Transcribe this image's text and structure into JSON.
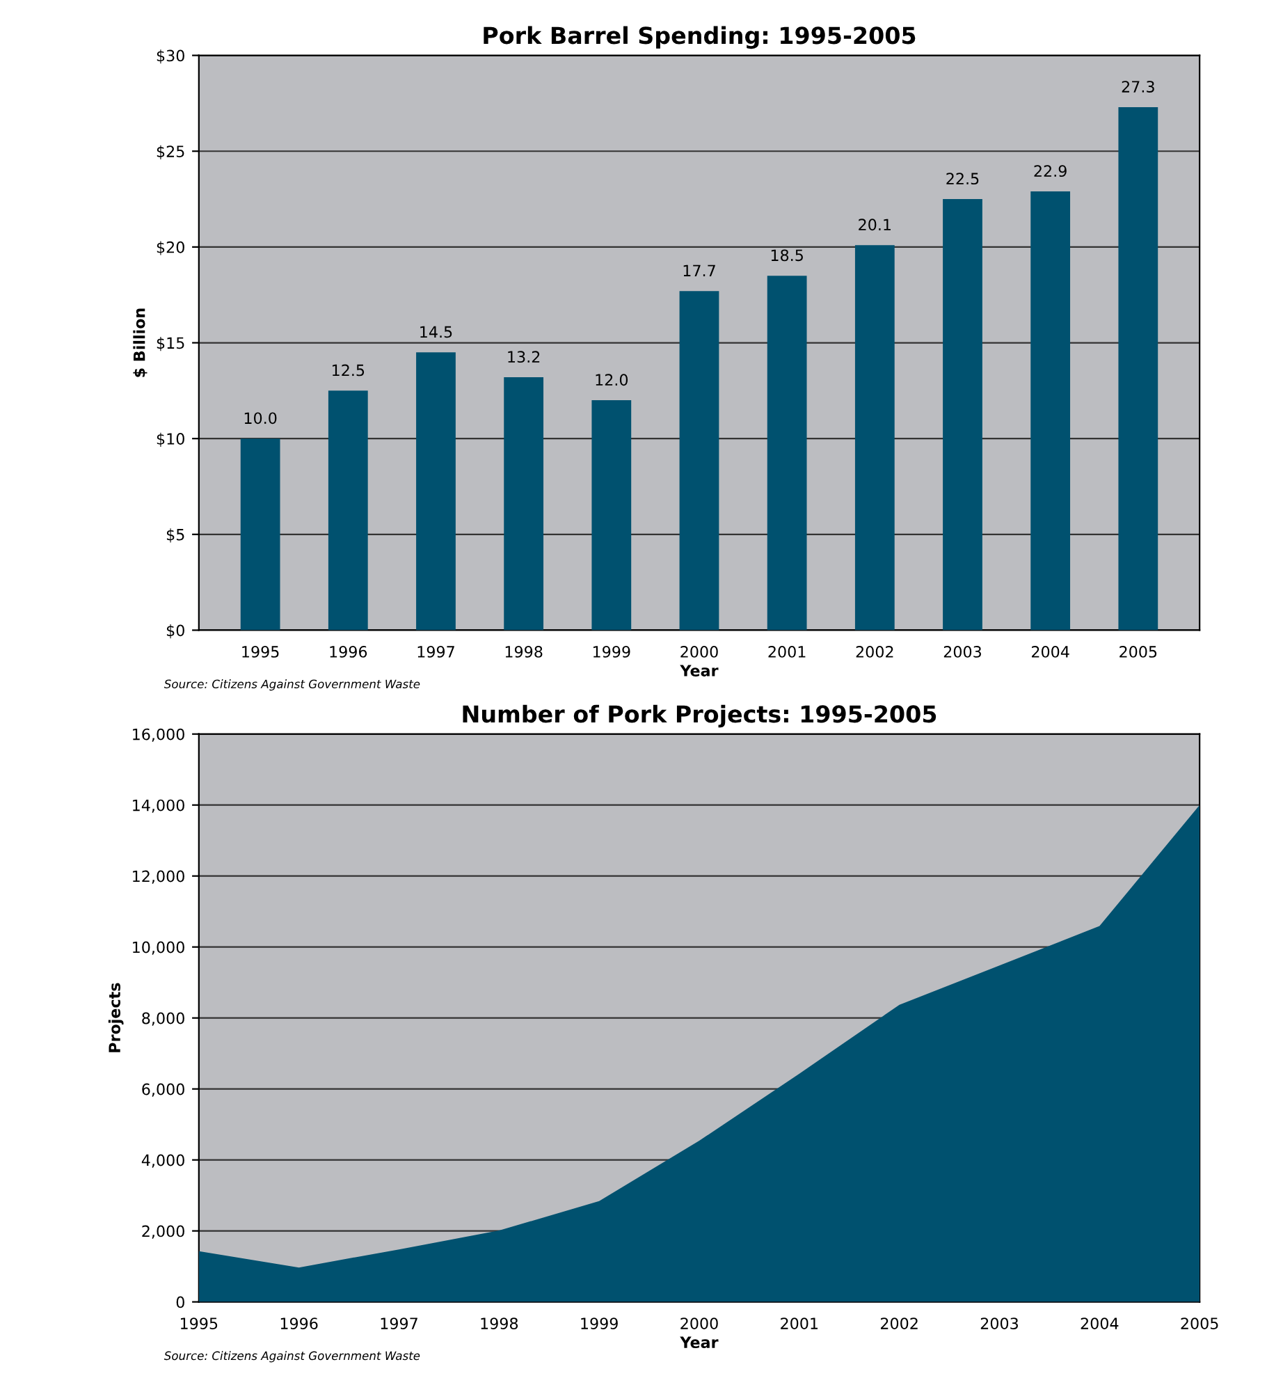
{
  "chart_data": [
    {
      "type": "bar",
      "title": "Pork Barrel Spending: 1995-2005",
      "xlabel": "Year",
      "ylabel": "$ Billion",
      "categories": [
        "1995",
        "1996",
        "1997",
        "1998",
        "1999",
        "2000",
        "2001",
        "2002",
        "2003",
        "2004",
        "2005"
      ],
      "values": [
        10.0,
        12.5,
        14.5,
        13.2,
        12.0,
        17.7,
        18.5,
        20.1,
        22.5,
        22.9,
        27.3
      ],
      "value_labels": [
        "10.0",
        "12.5",
        "14.5",
        "13.2",
        "12.0",
        "17.7",
        "18.5",
        "20.1",
        "22.5",
        "22.9",
        "27.3"
      ],
      "color": "#00516f",
      "ylim": [
        0,
        30
      ],
      "yticks": [
        {
          "value": 0,
          "label": "$0"
        },
        {
          "value": 5,
          "label": "$5"
        },
        {
          "value": 10,
          "label": "$10"
        },
        {
          "value": 15,
          "label": "$15"
        },
        {
          "value": 20,
          "label": "$20"
        },
        {
          "value": 25,
          "label": "$25"
        },
        {
          "value": 30,
          "label": "$30"
        }
      ],
      "grid": "y",
      "legend": false,
      "annotations": [
        "Source: Citizens Against Government Waste"
      ]
    },
    {
      "type": "area",
      "title": "Number of Pork Projects: 1995-2005",
      "xlabel": "Year",
      "ylabel": "Projects",
      "categories": [
        "1995",
        "1996",
        "1997",
        "1998",
        "1999",
        "2000",
        "2001",
        "2002",
        "2003",
        "2004",
        "2005"
      ],
      "values": [
        1430,
        970,
        1480,
        2010,
        2840,
        4540,
        6430,
        8370,
        9480,
        10590,
        14000
      ],
      "color": "#00516f",
      "ylim": [
        0,
        16000
      ],
      "yticks": [
        {
          "value": 0,
          "label": "0"
        },
        {
          "value": 2000,
          "label": "2,000"
        },
        {
          "value": 4000,
          "label": "4,000"
        },
        {
          "value": 6000,
          "label": "6,000"
        },
        {
          "value": 8000,
          "label": "8,000"
        },
        {
          "value": 10000,
          "label": "10,000"
        },
        {
          "value": 12000,
          "label": "12,000"
        },
        {
          "value": 14000,
          "label": "14,000"
        },
        {
          "value": 16000,
          "label": "16,000"
        }
      ],
      "grid": "y",
      "legend": false,
      "annotations": [
        "Source: Citizens Against Government Waste"
      ]
    }
  ]
}
